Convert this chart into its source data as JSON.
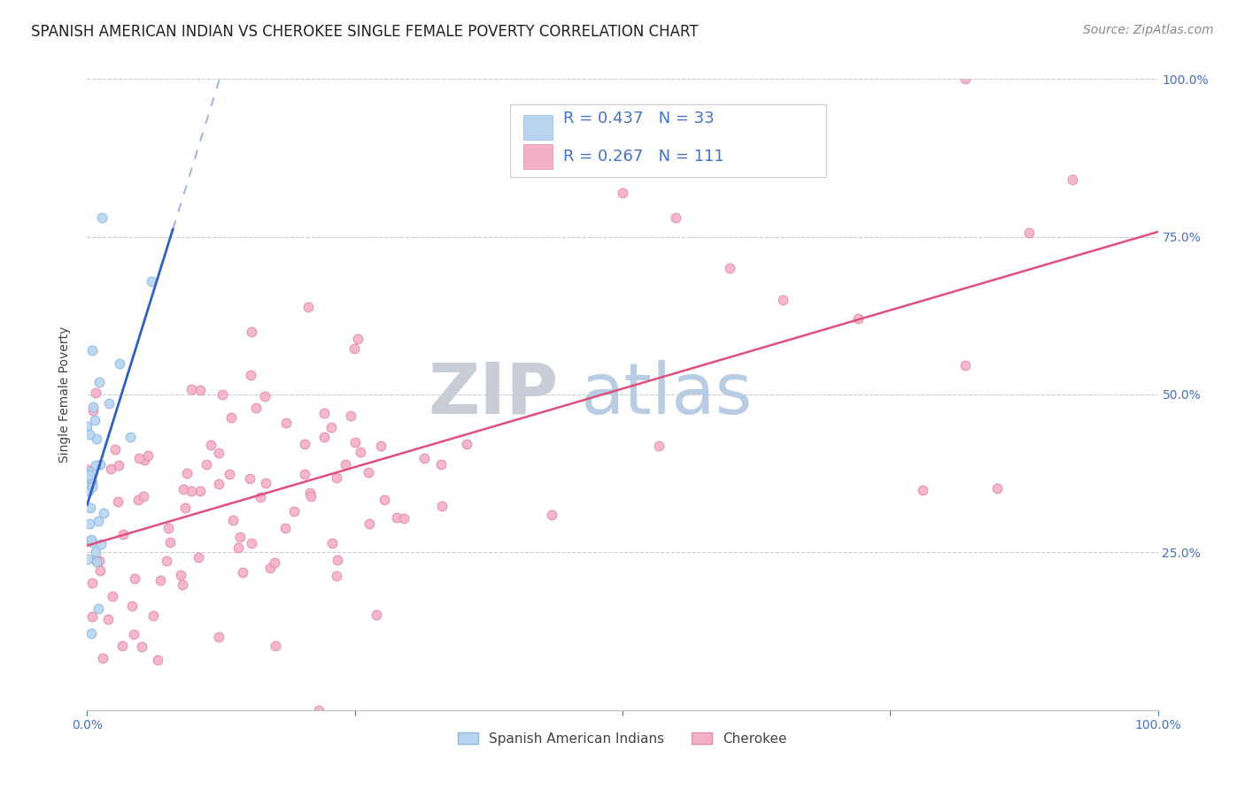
{
  "title": "SPANISH AMERICAN INDIAN VS CHEROKEE SINGLE FEMALE POVERTY CORRELATION CHART",
  "source": "Source: ZipAtlas.com",
  "ylabel": "Single Female Poverty",
  "legend_r_color_blue": "#4472c4",
  "legend_r_color_pink": "#e0507a",
  "legend_text_color": "#333333",
  "series1": {
    "name": "Spanish American Indians",
    "R": 0.437,
    "N": 33,
    "color": "#b8d4f0",
    "edge_color": "#90b8e0",
    "line_color": "#3060c0",
    "marker_size": 60
  },
  "series2": {
    "name": "Cherokee",
    "R": 0.267,
    "N": 111,
    "color": "#f4b0c4",
    "edge_color": "#e090a8",
    "line_color": "#e0507a",
    "marker_size": 60
  },
  "watermark_zip": "ZIP",
  "watermark_atlas": "atlas",
  "watermark_zip_color": "#c8cdd8",
  "watermark_atlas_color": "#b8cce4",
  "background_color": "#ffffff",
  "grid_color": "#cccccc",
  "axis_color": "#4472c4",
  "title_fontsize": 12,
  "source_fontsize": 10,
  "axis_label_fontsize": 10,
  "tick_label_fontsize": 10
}
